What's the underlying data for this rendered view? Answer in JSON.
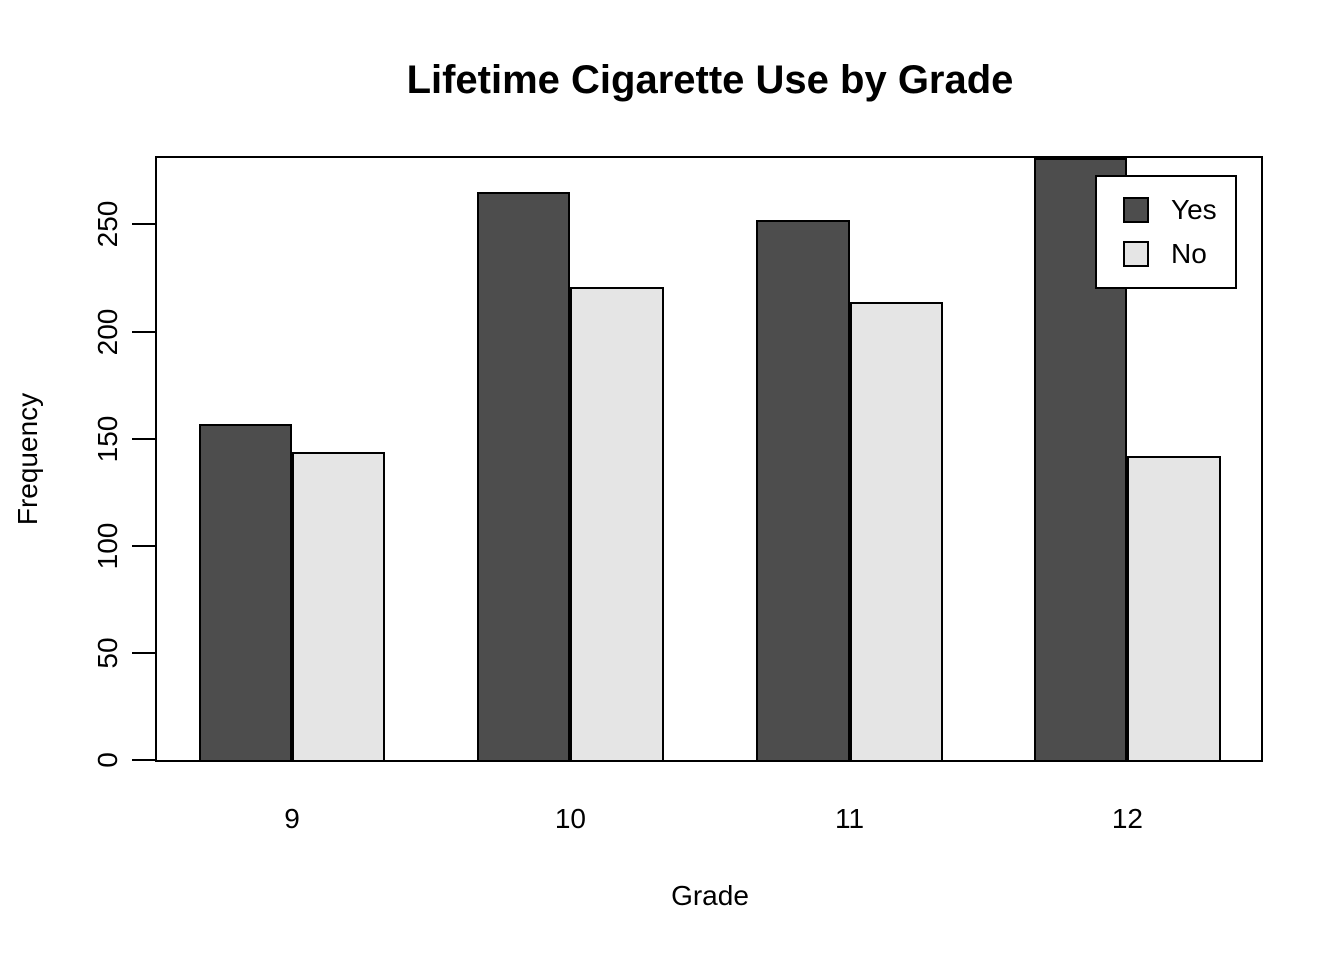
{
  "chart_data": {
    "type": "bar",
    "title": "Lifetime Cigarette Use by Grade",
    "xlabel": "Grade",
    "ylabel": "Frequency",
    "categories": [
      "9",
      "10",
      "11",
      "12"
    ],
    "series": [
      {
        "name": "Yes",
        "color": "#4D4D4D",
        "values": [
          157,
          265,
          252,
          281
        ]
      },
      {
        "name": "No",
        "color": "#E5E5E5",
        "values": [
          144,
          221,
          214,
          142
        ]
      }
    ],
    "yticks": [
      0,
      50,
      100,
      150,
      200,
      250
    ],
    "ylim": [
      0,
      281
    ],
    "grid": false,
    "legend_position": "top-right",
    "note_clipped_bar": "Grade 12 Yes bar is clipped at the top of the plot box",
    "colors": {
      "background": "#FFFFFF",
      "axis": "#000000",
      "text": "#000000"
    }
  }
}
